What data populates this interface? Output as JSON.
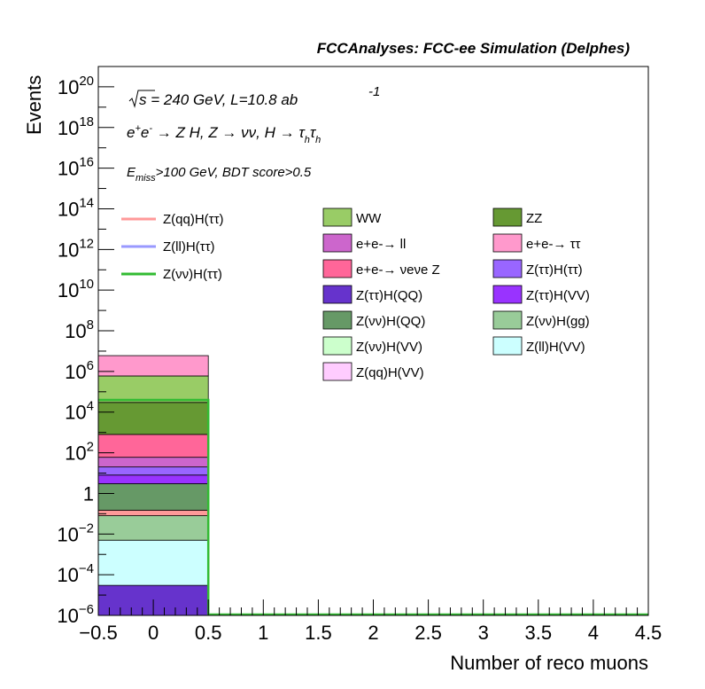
{
  "chart_data": {
    "type": "bar",
    "title": "FCCAnalyses: FCC-ee Simulation (Delphes)",
    "xlabel": "Number of reco muons",
    "ylabel": "Events",
    "yscale": "log",
    "xlim": [
      -0.5,
      4.5
    ],
    "ylim": [
      1e-06,
      1e+21
    ],
    "annotations": {
      "sqrt_s": "s = 240 GeV, L=10.8 ab",
      "lumi_exp": "-1",
      "process_prefix": "e",
      "process_mid": " → Z H, Z  → νν, H  → τ",
      "selection_main": ">100 GeV, BDT score>0.5",
      "selection_prefix": "E",
      "selection_sub": "miss"
    },
    "x_ticks": [
      "−0.5",
      "0",
      "0.5",
      "1",
      "1.5",
      "2",
      "2.5",
      "3",
      "3.5",
      "4",
      "4.5"
    ],
    "y_ticks": [
      {
        "base": "10",
        "exp": "−6",
        "value": 1e-06
      },
      {
        "base": "10",
        "exp": "−4",
        "value": 0.0001
      },
      {
        "base": "10",
        "exp": "−2",
        "value": 0.01
      },
      {
        "base": "1",
        "exp": "",
        "value": 1
      },
      {
        "base": "10",
        "exp": "2",
        "value": 100.0
      },
      {
        "base": "10",
        "exp": "4",
        "value": 10000.0
      },
      {
        "base": "10",
        "exp": "6",
        "value": 1000000.0
      },
      {
        "base": "10",
        "exp": "8",
        "value": 100000000.0
      },
      {
        "base": "10",
        "exp": "10",
        "value": 10000000000.0
      },
      {
        "base": "10",
        "exp": "12",
        "value": 1000000000000.0
      },
      {
        "base": "10",
        "exp": "14",
        "value": 100000000000000.0
      },
      {
        "base": "10",
        "exp": "16",
        "value": 1e+16
      },
      {
        "base": "10",
        "exp": "18",
        "value": 1e+18
      },
      {
        "base": "10",
        "exp": "20",
        "value": 1e+20
      }
    ],
    "bin": [
      -0.5,
      0.5
    ],
    "stack_bands": [
      {
        "name": "Z(ττ)H(QQ)",
        "color": "#6633cc",
        "low": 1e-06,
        "high": 3e-05
      },
      {
        "name": "Z(ll)H(VV)",
        "color": "#ccffff",
        "low": 3e-05,
        "high": 0.005
      },
      {
        "name": "Z(νν)H(gg)",
        "color": "#99cc99",
        "low": 0.005,
        "high": 0.08
      },
      {
        "name": "Z(qq)H(ττ)",
        "color": "#ff9999",
        "low": 0.08,
        "high": 0.15
      },
      {
        "name": "Z(νν)H(QQ)",
        "color": "#669966",
        "low": 0.15,
        "high": 3
      },
      {
        "name": "Z(ττ)H(VV)",
        "color": "#9933ff",
        "low": 3,
        "high": 8
      },
      {
        "name": "Z(ττ)H(ττ)",
        "color": "#9966ff",
        "low": 8,
        "high": 20.0
      },
      {
        "name": "e+e- → ll",
        "color": "#cc66cc",
        "low": 20.0,
        "high": 60.0
      },
      {
        "name": "e+e- → νeνe Z",
        "color": "#ff6699",
        "low": 60.0,
        "high": 800.0
      },
      {
        "name": "ZZ",
        "color": "#669933",
        "low": 800.0,
        "high": 30000.0
      },
      {
        "name": "WW",
        "color": "#99cc66",
        "low": 30000.0,
        "high": 600000.0
      },
      {
        "name": "e+e- → ττ",
        "color": "#ff99cc",
        "low": 600000.0,
        "high": 6000000.0
      }
    ],
    "signal_lines": [
      {
        "name": "Z(νν)H(ττ)",
        "color": "#33bb33",
        "value": 40000.0
      }
    ],
    "legend_lines": [
      {
        "label": "Z(qq)H(ττ)",
        "color": "#ff9999"
      },
      {
        "label": "Z(ll)H(ττ)",
        "color": "#9999ff"
      },
      {
        "label": "Z(νν)H(ττ)",
        "color": "#33bb33"
      }
    ],
    "legend_boxes": [
      {
        "label": "WW",
        "color": "#99cc66"
      },
      {
        "label": "ZZ",
        "color": "#669933"
      },
      {
        "label": "e+e-→ ll",
        "color": "#cc66cc"
      },
      {
        "label": "e+e-→ ττ",
        "color": "#ff99cc"
      },
      {
        "label": "e+e-→ νeνe Z",
        "color": "#ff6699"
      },
      {
        "label": "Z(ττ)H(ττ)",
        "color": "#9966ff"
      },
      {
        "label": "Z(ττ)H(QQ)",
        "color": "#6633cc"
      },
      {
        "label": "Z(ττ)H(VV)",
        "color": "#9933ff"
      },
      {
        "label": "Z(νν)H(QQ)",
        "color": "#669966"
      },
      {
        "label": "Z(νν)H(gg)",
        "color": "#99cc99"
      },
      {
        "label": "Z(νν)H(VV)",
        "color": "#ccffcc"
      },
      {
        "label": "Z(ll)H(VV)",
        "color": "#ccffff"
      },
      {
        "label": "Z(qq)H(VV)",
        "color": "#ffccff"
      }
    ],
    "grid": false,
    "legend_placement": "top"
  }
}
